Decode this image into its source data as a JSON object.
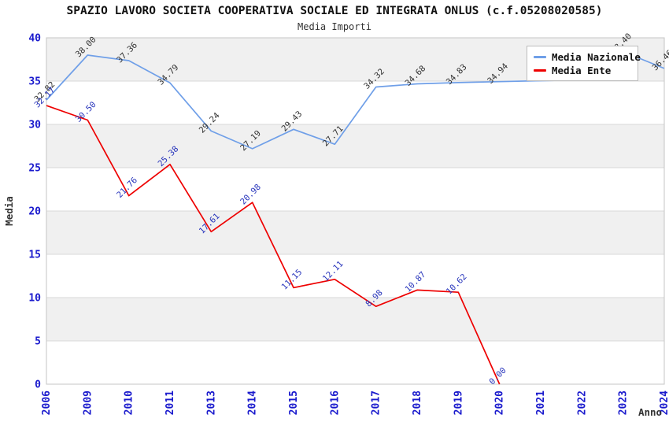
{
  "chart_data": {
    "type": "line",
    "title": "SPAZIO LAVORO SOCIETA COOPERATIVA SOCIALE ED INTEGRATA ONLUS (c.f.05208020585)",
    "subtitle": "Media Importi",
    "xlabel": "Anno",
    "ylabel": "Media",
    "ylim": [
      0,
      40
    ],
    "y_ticks": [
      0,
      5,
      10,
      15,
      20,
      25,
      30,
      35,
      40
    ],
    "grid": true,
    "band_color": "#f0f0f0",
    "gridline_color": "#d9d9d9",
    "plot_border_color": "#c5c5c5",
    "axis_tick_label_color": "#1a1acd",
    "axis_title_color": "#333333",
    "legend_position": "top-right",
    "categories": [
      "2006",
      "2009",
      "2010",
      "2011",
      "2013",
      "2014",
      "2015",
      "2016",
      "2017",
      "2018",
      "2019",
      "2020",
      "2021",
      "2022",
      "2023",
      "2024"
    ],
    "series": [
      {
        "name": "Media Nazionale",
        "color": "#6f9fe8",
        "label_color": "#303030",
        "values": [
          32.82,
          38.0,
          37.36,
          34.79,
          29.24,
          27.19,
          29.43,
          27.71,
          34.32,
          34.68,
          34.83,
          34.94,
          35.05,
          35.15,
          38.4,
          36.46
        ],
        "labels": [
          "32.82",
          "38.00",
          "37.36",
          "34.79",
          "29.24",
          "27.19",
          "29.43",
          "27.71",
          "34.32",
          "34.68",
          "34.83",
          "34.94",
          "",
          "",
          "38.40",
          "36.46"
        ]
      },
      {
        "name": "Media Ente",
        "color": "#ee0000",
        "label_color": "#2633bb",
        "values": [
          32.17,
          30.5,
          21.76,
          25.38,
          17.61,
          20.98,
          11.15,
          12.11,
          8.98,
          10.87,
          10.62,
          0.0,
          null,
          null,
          null,
          null
        ],
        "labels": [
          "32.17",
          "30.50",
          "21.76",
          "25.38",
          "17.61",
          "20.98",
          "11.15",
          "12.11",
          "8.98",
          "10.87",
          "10.62",
          "0.00",
          "",
          "",
          "",
          ""
        ]
      }
    ]
  }
}
